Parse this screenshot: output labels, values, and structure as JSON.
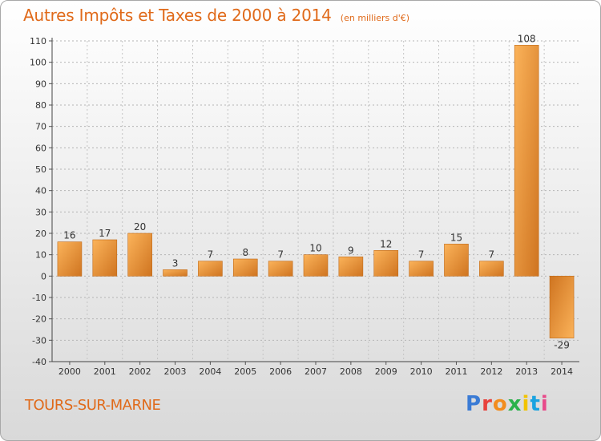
{
  "chart_data": {
    "type": "bar",
    "title": "Autres Impôts et Taxes de 2000 à 2014",
    "subtitle": "(en milliers d'€)",
    "categories": [
      "2000",
      "2001",
      "2002",
      "2003",
      "2004",
      "2005",
      "2006",
      "2007",
      "2008",
      "2009",
      "2010",
      "2011",
      "2012",
      "2013",
      "2014"
    ],
    "values": [
      16,
      17,
      20,
      3,
      7,
      8,
      7,
      10,
      9,
      12,
      7,
      15,
      7,
      108,
      -29
    ],
    "ylim": [
      -40,
      110
    ],
    "yticks": [
      -40,
      -30,
      -20,
      -10,
      0,
      10,
      20,
      30,
      40,
      50,
      60,
      70,
      80,
      90,
      100,
      110
    ],
    "grid": true,
    "legend": "none"
  },
  "footer": {
    "city": "TOURS-SUR-MARNE",
    "brand": "Proxiti"
  },
  "colors": {
    "bar_light": "#f7a64a",
    "bar_dark": "#d2761e",
    "title": "#e06a1a",
    "axis": "#333333"
  }
}
